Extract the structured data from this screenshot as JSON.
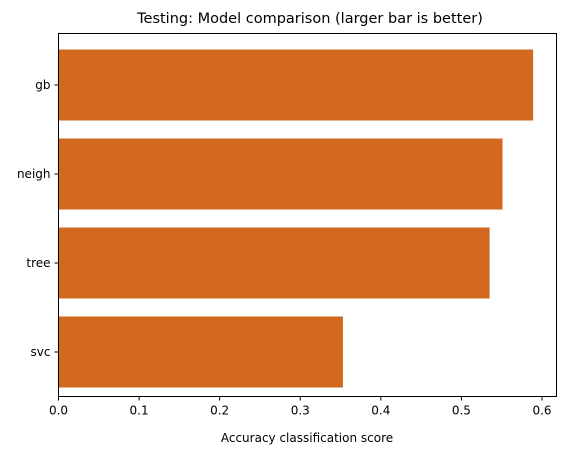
{
  "chart_data": {
    "type": "bar",
    "orientation": "horizontal",
    "title": "Testing: Model comparison (larger bar is better)",
    "xlabel": "Accuracy classification score",
    "ylabel": "",
    "categories": [
      "gb",
      "neigh",
      "tree",
      "svc"
    ],
    "values": [
      0.589,
      0.551,
      0.535,
      0.353
    ],
    "xlim": [
      0,
      0.618
    ],
    "xticks": [
      "0.0",
      "0.1",
      "0.2",
      "0.3",
      "0.4",
      "0.5",
      "0.6"
    ],
    "bar_color": "#d2691e",
    "grid": false,
    "legend": "none"
  }
}
